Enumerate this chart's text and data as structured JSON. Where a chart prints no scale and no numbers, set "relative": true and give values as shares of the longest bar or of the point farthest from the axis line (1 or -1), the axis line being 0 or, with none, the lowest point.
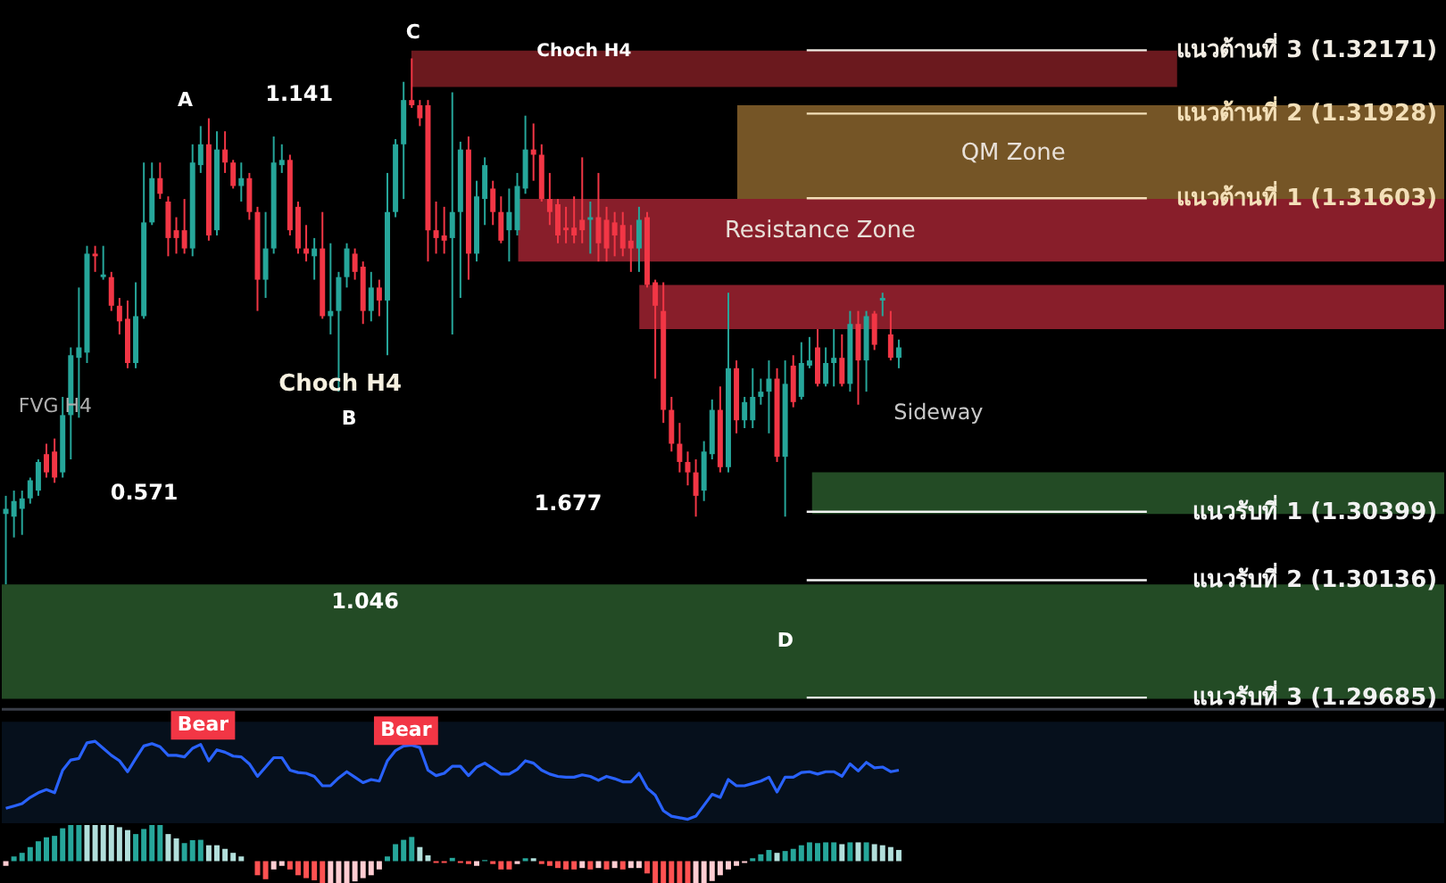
{
  "chart_data": [
    {
      "type": "candlestick",
      "tick_labels": false,
      "ylim": [
        1.2964,
        1.3236
      ],
      "colors": [
        "#26a69a",
        "#26a69a",
        "#26a69a",
        "#26a69a",
        "#26a69a",
        "#f23645",
        "#f23645",
        "#26a69a",
        "#26a69a",
        "#26a69a",
        "#26a69a",
        "#f23645",
        "#26a69a",
        "#f23645",
        "#f23645",
        "#f23645",
        "#26a69a",
        "#26a69a",
        "#26a69a",
        "#f23645",
        "#f23645",
        "#f23645",
        "#f23645",
        "#26a69a",
        "#26a69a",
        "#f23645",
        "#26a69a",
        "#f23645",
        "#f23645",
        "#26a69a",
        "#f23645",
        "#f23645",
        "#26a69a",
        "#26a69a",
        "#26a69a",
        "#f23645",
        "#f23645",
        "#f23645",
        "#26a69a",
        "#f23645",
        "#26a69a",
        "#26a69a",
        "#26a69a",
        "#f23645",
        "#f23645",
        "#26a69a",
        "#f23645",
        "#26a69a",
        "#26a69a",
        "#26a69a",
        "#f23645",
        "#f23645",
        "#f23645",
        "#f23645",
        "#f23645",
        "#26a69a",
        "#26a69a",
        "#f23645",
        "#26a69a",
        "#26a69a",
        "#f23645",
        "#f23645",
        "#26a69a",
        "#26a69a",
        "#26a69a",
        "#f23645",
        "#f23645",
        "#f23645",
        "#f23645",
        "#f23645",
        "#f23645",
        "#f23645",
        "#26a69a",
        "#f23645",
        "#f23645",
        "#f23645",
        "#f23645",
        "#f23645",
        "#26a69a",
        "#f23645",
        "#f23645",
        "#f23645",
        "#f23645",
        "#f23645",
        "#f23645",
        "#f23645",
        "#26a69a",
        "#26a69a",
        "#f23645",
        "#26a69a",
        "#f23645",
        "#26a69a",
        "#26a69a",
        "#26a69a",
        "#26a69a",
        "#f23645",
        "#26a69a",
        "#f23645",
        "#26a69a",
        "#26a69a",
        "#f23645",
        "#26a69a",
        "#26a69a",
        "#f23645",
        "#26a69a",
        "#f23645",
        "#26a69a",
        "#f23645",
        "#26a69a",
        "#f23645",
        "#26a69a"
      ],
      "categories": [
        null,
        null,
        null,
        null,
        null,
        null,
        null,
        null,
        null,
        null,
        null,
        null,
        null,
        null,
        null,
        null,
        null,
        null,
        null,
        null,
        null,
        null,
        null,
        null,
        null,
        null,
        null,
        null,
        null,
        null,
        null,
        null,
        null,
        null,
        null,
        null,
        null,
        null,
        null,
        null,
        null,
        null,
        null,
        null,
        null,
        null,
        null,
        null,
        null,
        null,
        null,
        null,
        null,
        null,
        null,
        null,
        null,
        null,
        null,
        null,
        null,
        null,
        null,
        null,
        null,
        null,
        null,
        null,
        null,
        null,
        null,
        null,
        null,
        null,
        null,
        null,
        null,
        null,
        null,
        null,
        null,
        null,
        null,
        null,
        null,
        null,
        null,
        null,
        null,
        null,
        null,
        null,
        null,
        null,
        null,
        null,
        null,
        null,
        null,
        null,
        null,
        null,
        null,
        null,
        null,
        null,
        null,
        null,
        null,
        null,
        null
      ],
      "ohlc": [
        [
          1.3039,
          1.3046,
          1.3012,
          1.3041
        ],
        [
          1.3038,
          1.3048,
          1.303,
          1.3044
        ],
        [
          1.3041,
          1.3048,
          1.3031,
          1.3045
        ],
        [
          1.3045,
          1.3053,
          1.3043,
          1.3052
        ],
        [
          1.3048,
          1.306,
          1.3046,
          1.3059
        ],
        [
          1.3062,
          1.3066,
          1.3053,
          1.3055
        ],
        [
          1.3063,
          1.3068,
          1.3051,
          1.3053
        ],
        [
          1.3055,
          1.3084,
          1.3053,
          1.3077
        ],
        [
          1.3077,
          1.3103,
          1.306,
          1.31
        ],
        [
          1.3099,
          1.3126,
          1.3076,
          1.3103
        ],
        [
          1.3101,
          1.3142,
          1.3097,
          1.3139
        ],
        [
          1.3139,
          1.3142,
          1.3132,
          1.3138
        ],
        [
          1.313,
          1.3142,
          1.3129,
          1.3131
        ],
        [
          1.313,
          1.3132,
          1.3117,
          1.3119
        ],
        [
          1.3119,
          1.3122,
          1.3108,
          1.3113
        ],
        [
          1.3114,
          1.3121,
          1.3095,
          1.3097
        ],
        [
          1.3097,
          1.3128,
          1.3095,
          1.3115
        ],
        [
          1.3115,
          1.3174,
          1.3114,
          1.3151
        ],
        [
          1.3151,
          1.3174,
          1.315,
          1.3168
        ],
        [
          1.3168,
          1.3174,
          1.316,
          1.3162
        ],
        [
          1.3159,
          1.3161,
          1.3138,
          1.3145
        ],
        [
          1.3148,
          1.3153,
          1.3139,
          1.3145
        ],
        [
          1.3148,
          1.316,
          1.3139,
          1.3141
        ],
        [
          1.3141,
          1.3181,
          1.3138,
          1.3174
        ],
        [
          1.3173,
          1.3188,
          1.317,
          1.3181
        ],
        [
          1.3181,
          1.3191,
          1.3144,
          1.3146
        ],
        [
          1.3148,
          1.3186,
          1.3146,
          1.3179
        ],
        [
          1.3179,
          1.3186,
          1.317,
          1.3174
        ],
        [
          1.3174,
          1.3175,
          1.3164,
          1.3165
        ],
        [
          1.3165,
          1.3174,
          1.3159,
          1.3168
        ],
        [
          1.3168,
          1.317,
          1.3152,
          1.3155
        ],
        [
          1.3155,
          1.3157,
          1.3117,
          1.3129
        ],
        [
          1.3129,
          1.3155,
          1.3122,
          1.3141
        ],
        [
          1.3141,
          1.3184,
          1.3139,
          1.3174
        ],
        [
          1.3173,
          1.3181,
          1.317,
          1.3175
        ],
        [
          1.3175,
          1.3177,
          1.3146,
          1.3148
        ],
        [
          1.3157,
          1.3159,
          1.3139,
          1.3141
        ],
        [
          1.3141,
          1.315,
          1.3136,
          1.3139
        ],
        [
          1.3138,
          1.3145,
          1.3129,
          1.3141
        ],
        [
          1.3141,
          1.3155,
          1.3114,
          1.3115
        ],
        [
          1.3115,
          1.3143,
          1.3108,
          1.3117
        ],
        [
          1.3117,
          1.3132,
          1.3086,
          1.313
        ],
        [
          1.313,
          1.3143,
          1.3126,
          1.3141
        ],
        [
          1.3139,
          1.3141,
          1.3129,
          1.3132
        ],
        [
          1.3134,
          1.3136,
          1.3112,
          1.3117
        ],
        [
          1.3117,
          1.3132,
          1.3113,
          1.3126
        ],
        [
          1.3126,
          1.3129,
          1.3115,
          1.3121
        ],
        [
          1.3121,
          1.317,
          1.31,
          1.3155
        ],
        [
          1.3155,
          1.3183,
          1.3153,
          1.3181
        ],
        [
          1.3181,
          1.3205,
          1.316,
          1.3198
        ],
        [
          1.3198,
          1.3214,
          1.3195,
          1.3196
        ],
        [
          1.3196,
          1.3198,
          1.3188,
          1.3191
        ],
        [
          1.3196,
          1.3198,
          1.3136,
          1.3148
        ],
        [
          1.3148,
          1.3159,
          1.3139,
          1.3145
        ],
        [
          1.3146,
          1.3157,
          1.3139,
          1.3144
        ],
        [
          1.3145,
          1.3201,
          1.3108,
          1.3155
        ],
        [
          1.3155,
          1.3182,
          1.3122,
          1.3179
        ],
        [
          1.3179,
          1.3184,
          1.3129,
          1.3139
        ],
        [
          1.3139,
          1.3167,
          1.3136,
          1.3161
        ],
        [
          1.316,
          1.3176,
          1.315,
          1.3173
        ],
        [
          1.3164,
          1.3167,
          1.315,
          1.3155
        ],
        [
          1.3155,
          1.3161,
          1.3143,
          1.3144
        ],
        [
          1.3148,
          1.3164,
          1.3136,
          1.3155
        ],
        [
          1.3148,
          1.317,
          1.3146,
          1.3165
        ],
        [
          1.3164,
          1.3192,
          1.3162,
          1.3179
        ],
        [
          1.3179,
          1.3189,
          1.3167,
          1.3177
        ],
        [
          1.3177,
          1.3181,
          1.3159,
          1.316
        ],
        [
          1.316,
          1.317,
          1.315,
          1.3155
        ],
        [
          1.3158,
          1.316,
          1.3143,
          1.3146
        ],
        [
          1.3149,
          1.3157,
          1.3143,
          1.3148
        ],
        [
          1.3149,
          1.3161,
          1.3143,
          1.3146
        ],
        [
          1.3152,
          1.3176,
          1.3143,
          1.3148
        ],
        [
          1.3152,
          1.3159,
          1.3139,
          1.3153
        ],
        [
          1.3153,
          1.317,
          1.3136,
          1.3143
        ],
        [
          1.3152,
          1.3157,
          1.3136,
          1.3141
        ],
        [
          1.3151,
          1.3155,
          1.3138,
          1.3146
        ],
        [
          1.315,
          1.3155,
          1.3138,
          1.3141
        ],
        [
          1.3144,
          1.315,
          1.3132,
          1.3141
        ],
        [
          1.3141,
          1.3157,
          1.3132,
          1.3152
        ],
        [
          1.3153,
          1.3155,
          1.3126,
          1.3127
        ],
        [
          1.3128,
          1.3129,
          1.3091,
          1.3119
        ],
        [
          1.3117,
          1.3128,
          1.3074,
          1.3079
        ],
        [
          1.3079,
          1.3084,
          1.3063,
          1.3066
        ],
        [
          1.3066,
          1.3074,
          1.3055,
          1.3059
        ],
        [
          1.3059,
          1.3063,
          1.305,
          1.3055
        ],
        [
          1.3055,
          1.306,
          1.3038,
          1.3046
        ],
        [
          1.3048,
          1.3067,
          1.3044,
          1.3063
        ],
        [
          1.3062,
          1.3083,
          1.306,
          1.3079
        ],
        [
          1.3079,
          1.3088,
          1.3055,
          1.3057
        ],
        [
          1.3057,
          1.3124,
          1.3055,
          1.3095
        ],
        [
          1.3095,
          1.3098,
          1.307,
          1.3075
        ],
        [
          1.3075,
          1.3084,
          1.3072,
          1.3082
        ],
        [
          1.3075,
          1.3095,
          1.3072,
          1.3084
        ],
        [
          1.3084,
          1.3091,
          1.3081,
          1.3086
        ],
        [
          1.3086,
          1.3098,
          1.307,
          1.3091
        ],
        [
          1.3091,
          1.3095,
          1.3059,
          1.3061
        ],
        [
          1.3061,
          1.3098,
          1.3038,
          1.3089
        ],
        [
          1.3096,
          1.31,
          1.308,
          1.3082
        ],
        [
          1.3084,
          1.3105,
          1.3083,
          1.3097
        ],
        [
          1.3096,
          1.3107,
          1.3095,
          1.3098
        ],
        [
          1.3103,
          1.311,
          1.3088,
          1.3089
        ],
        [
          1.3089,
          1.3103,
          1.3088,
          1.3097
        ],
        [
          1.3097,
          1.311,
          1.3088,
          1.3099
        ],
        [
          1.3099,
          1.3108,
          1.3088,
          1.3089
        ],
        [
          1.3089,
          1.3117,
          1.3086,
          1.3112
        ],
        [
          1.3112,
          1.3117,
          1.3081,
          1.3098
        ],
        [
          1.3098,
          1.3117,
          1.3086,
          1.3115
        ],
        [
          1.3116,
          1.3117,
          1.3102,
          1.3104
        ],
        [
          1.3121,
          1.3124,
          1.3115,
          1.3122
        ],
        [
          1.3108,
          1.3117,
          1.3098,
          1.3099
        ],
        [
          1.3099,
          1.3106,
          1.3095,
          1.3103
        ]
      ],
      "bands": [
        {
          "axis": "y",
          "from": 1.3203,
          "to": 1.3217,
          "color": "#7a1c22"
        },
        {
          "axis": "y",
          "from": 1.316,
          "to": 1.3196,
          "label": "QM Zone",
          "color": "#85612b"
        },
        {
          "axis": "y",
          "from": 1.3136,
          "to": 1.316,
          "label": "Resistance Zone",
          "color": "#9b2230"
        },
        {
          "axis": "y",
          "from": 1.311,
          "to": 1.3127,
          "color": "#9b2230"
        },
        {
          "axis": "y",
          "from": 1.3039,
          "to": 1.3055,
          "color": "#28552a"
        },
        {
          "axis": "y",
          "from": 1.2968,
          "to": 1.3012,
          "color": "#28552a"
        }
      ],
      "ref_lines": [
        {
          "axis": "y",
          "value": 1.32171,
          "label": "แนวต้านที่ 3 (1.32171)",
          "color": "#f2ede4"
        },
        {
          "axis": "y",
          "value": 1.31928,
          "label": "แนวต้านที่ 2 (1.31928)",
          "color": "#f3dfb8"
        },
        {
          "axis": "y",
          "value": 1.31603,
          "label": "แนวต้านที่ 1 (1.31603)",
          "color": "#f3dfb8"
        },
        {
          "axis": "y",
          "value": 1.30399,
          "label": "แนวรับที่ 1 (1.30399)",
          "color": "#f2f2f2"
        },
        {
          "axis": "y",
          "value": 1.30136,
          "label": "แนวรับที่ 2 (1.30136)",
          "color": "#f2f2f2"
        },
        {
          "axis": "y",
          "value": 1.29685,
          "label": "แนวรับที่ 3 (1.29685)",
          "color": "#f2f2f2"
        }
      ],
      "annotations": [
        "A",
        "B",
        "C",
        "D",
        "1.141",
        "0.571",
        "1.677",
        "1.046",
        "Choch H4",
        "Choch H4",
        "FVG H4",
        "Sideway"
      ]
    },
    {
      "type": "line",
      "relative": true,
      "categories": [
        null,
        null,
        null,
        null,
        null,
        null,
        null,
        null,
        null,
        null,
        null,
        null,
        null,
        null,
        null,
        null,
        null,
        null,
        null,
        null,
        null,
        null,
        null,
        null,
        null,
        null,
        null,
        null,
        null,
        null,
        null,
        null,
        null,
        null,
        null,
        null,
        null,
        null,
        null,
        null,
        null,
        null,
        null,
        null,
        null,
        null,
        null,
        null,
        null,
        null,
        null,
        null,
        null,
        null,
        null,
        null,
        null,
        null,
        null,
        null,
        null,
        null,
        null,
        null,
        null,
        null,
        null,
        null,
        null,
        null,
        null,
        null,
        null,
        null,
        null,
        null,
        null,
        null,
        null,
        null,
        null,
        null,
        null,
        null,
        null,
        null,
        null,
        null,
        null,
        null,
        null,
        null,
        null,
        null,
        null,
        null,
        null,
        null,
        null,
        null,
        null,
        null,
        null,
        null,
        null,
        null,
        null,
        null,
        null,
        null,
        null
      ],
      "series": [
        {
          "color": "#2962ff",
          "values": [
            0.14,
            0.17,
            0.2,
            0.28,
            0.34,
            0.38,
            0.34,
            0.63,
            0.76,
            0.78,
            0.98,
            1.0,
            0.91,
            0.82,
            0.75,
            0.61,
            0.78,
            0.94,
            0.97,
            0.93,
            0.82,
            0.82,
            0.8,
            0.91,
            0.96,
            0.75,
            0.89,
            0.86,
            0.81,
            0.8,
            0.71,
            0.55,
            0.67,
            0.79,
            0.79,
            0.63,
            0.6,
            0.59,
            0.55,
            0.43,
            0.43,
            0.53,
            0.61,
            0.54,
            0.47,
            0.51,
            0.49,
            0.75,
            0.88,
            0.94,
            0.95,
            0.92,
            0.63,
            0.56,
            0.59,
            0.68,
            0.68,
            0.56,
            0.67,
            0.72,
            0.65,
            0.58,
            0.58,
            0.64,
            0.75,
            0.72,
            0.63,
            0.58,
            0.55,
            0.54,
            0.54,
            0.57,
            0.55,
            0.5,
            0.55,
            0.52,
            0.48,
            0.48,
            0.59,
            0.4,
            0.31,
            0.11,
            0.04,
            0.02,
            0,
            0.04,
            0.18,
            0.32,
            0.28,
            0.51,
            0.43,
            0.43,
            0.46,
            0.49,
            0.54,
            0.35,
            0.54,
            0.54,
            0.6,
            0.61,
            0.58,
            0.61,
            0.61,
            0.55,
            0.71,
            0.62,
            0.73,
            0.66,
            0.67,
            0.61,
            0.63
          ]
        }
      ],
      "annotations": [
        "Bear",
        "Bear"
      ]
    },
    {
      "type": "bar",
      "relative": true,
      "categories": [
        null,
        null,
        null,
        null,
        null,
        null,
        null,
        null,
        null,
        null,
        null,
        null,
        null,
        null,
        null,
        null,
        null,
        null,
        null,
        null,
        null,
        null,
        null,
        null,
        null,
        null,
        null,
        null,
        null,
        null,
        null,
        null,
        null,
        null,
        null,
        null,
        null,
        null,
        null,
        null,
        null,
        null,
        null,
        null,
        null,
        null,
        null,
        null,
        null,
        null,
        null,
        null,
        null,
        null,
        null,
        null,
        null,
        null,
        null,
        null,
        null,
        null,
        null,
        null,
        null,
        null,
        null,
        null,
        null,
        null,
        null,
        null,
        null,
        null,
        null,
        null,
        null,
        null,
        null,
        null,
        null,
        null,
        null,
        null,
        null,
        null,
        null,
        null,
        null,
        null,
        null,
        null,
        null,
        null,
        null,
        null,
        null,
        null,
        null,
        null,
        null,
        null,
        null,
        null,
        null,
        null,
        null,
        null,
        null,
        null,
        null
      ],
      "values": [
        -0.13,
        0.13,
        0.23,
        0.39,
        0.55,
        0.66,
        0.7,
        0.91,
        1.0,
        1.0,
        1.0,
        1.0,
        1.0,
        1.0,
        0.94,
        0.86,
        0.75,
        0.89,
        1.0,
        1.0,
        0.75,
        0.63,
        0.5,
        0.58,
        0.59,
        0.44,
        0.44,
        0.34,
        0.23,
        0.13,
        null,
        -0.39,
        -0.5,
        -0.23,
        -0.13,
        -0.23,
        -0.39,
        -0.47,
        -0.53,
        -0.72,
        -0.72,
        -0.72,
        -0.63,
        -0.56,
        -0.47,
        -0.39,
        -0.23,
        0.13,
        0.47,
        0.59,
        0.67,
        0.39,
        0.16,
        -0.05,
        -0.05,
        0.09,
        -0.05,
        -0.08,
        -0.13,
        0.03,
        -0.08,
        -0.23,
        -0.23,
        -0.08,
        0.08,
        0.08,
        -0.08,
        -0.13,
        -0.19,
        -0.23,
        -0.23,
        -0.19,
        -0.23,
        -0.19,
        -0.23,
        -0.19,
        -0.23,
        -0.19,
        -0.19,
        -0.34,
        -0.63,
        -0.72,
        -0.72,
        -0.72,
        -0.72,
        -0.72,
        -0.63,
        -0.55,
        -0.39,
        -0.23,
        -0.13,
        -0.05,
        0.08,
        0.19,
        0.31,
        0.23,
        0.28,
        0.34,
        0.44,
        0.52,
        0.5,
        0.52,
        0.52,
        0.47,
        0.52,
        0.52,
        0.52,
        0.47,
        0.44,
        0.39,
        0.31
      ],
      "colors": [
        "#ffcdd2",
        "#26a69a",
        "#26a69a",
        "#26a69a",
        "#26a69a",
        "#26a69a",
        "#26a69a",
        "#26a69a",
        "#26a69a",
        "#26a69a",
        "#b2dfdb",
        "#b2dfdb",
        "#b2dfdb",
        "#b2dfdb",
        "#b2dfdb",
        "#b2dfdb",
        "#26a69a",
        "#26a69a",
        "#26a69a",
        "#26a69a",
        "#b2dfdb",
        "#b2dfdb",
        "#26a69a",
        "#26a69a",
        "#26a69a",
        "#b2dfdb",
        "#b2dfdb",
        "#b2dfdb",
        "#b2dfdb",
        "#b2dfdb",
        "#b2dfdb",
        "#ff5252",
        "#ff5252",
        "#ffcdd2",
        "#ffcdd2",
        "#ff5252",
        "#ff5252",
        "#ff5252",
        "#ff5252",
        "#ff5252",
        "#ffcdd2",
        "#ffcdd2",
        "#ffcdd2",
        "#ffcdd2",
        "#ffcdd2",
        "#ffcdd2",
        "#ffcdd2",
        "#26a69a",
        "#26a69a",
        "#26a69a",
        "#26a69a",
        "#b2dfdb",
        "#b2dfdb",
        "#ff5252",
        "#ff5252",
        "#26a69a",
        "#ff5252",
        "#ff5252",
        "#ffcdd2",
        "#26a69a",
        "#ff5252",
        "#ff5252",
        "#ff5252",
        "#ffcdd2",
        "#26a69a",
        "#b2dfdb",
        "#ff5252",
        "#ff5252",
        "#ff5252",
        "#ff5252",
        "#ff5252",
        "#ffcdd2",
        "#ff5252",
        "#ffcdd2",
        "#ff5252",
        "#ffcdd2",
        "#ff5252",
        "#ffcdd2",
        "#ffcdd2",
        "#ff5252",
        "#ff5252",
        "#ff5252",
        "#ff5252",
        "#ff5252",
        "#ff5252",
        "#ffcdd2",
        "#ffcdd2",
        "#ffcdd2",
        "#ffcdd2",
        "#ffcdd2",
        "#ffcdd2",
        "#ffcdd2",
        "#26a69a",
        "#26a69a",
        "#26a69a",
        "#b2dfdb",
        "#26a69a",
        "#26a69a",
        "#26a69a",
        "#26a69a",
        "#26a69a",
        "#26a69a",
        "#26a69a",
        "#b2dfdb",
        "#26a69a",
        "#b2dfdb",
        "#26a69a",
        "#b2dfdb",
        "#b2dfdb",
        "#b2dfdb",
        "#b2dfdb"
      ]
    }
  ]
}
